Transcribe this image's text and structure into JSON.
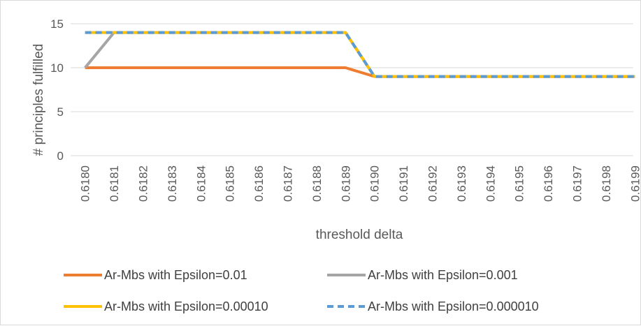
{
  "chart_data": {
    "type": "line",
    "title": "",
    "xlabel": "threshold delta",
    "ylabel": "# principles fulfilled",
    "categories": [
      "0.6180",
      "0.6181",
      "0.6182",
      "0.6183",
      "0.6184",
      "0.6185",
      "0.6186",
      "0.6187",
      "0.6188",
      "0.6189",
      "0.6190",
      "0.6191",
      "0.6192",
      "0.6193",
      "0.6194",
      "0.6195",
      "0.6196",
      "0.6197",
      "0.6198",
      "0.6199"
    ],
    "y_ticks": [
      "0",
      "5",
      "10",
      "15"
    ],
    "ylim": [
      0,
      15
    ],
    "grid": "horizontal",
    "legend_position": "bottom",
    "series": [
      {
        "name": "Ar-Mbs with Epsilon=0.01",
        "color": "#ed7d31",
        "dash": "solid",
        "values": [
          10,
          10,
          10,
          10,
          10,
          10,
          10,
          10,
          10,
          10,
          9,
          9,
          9,
          9,
          9,
          9,
          9,
          9,
          9,
          9
        ]
      },
      {
        "name": "Ar-Mbs with Epsilon=0.001",
        "color": "#a5a5a5",
        "dash": "solid",
        "values": [
          10,
          14,
          14,
          14,
          14,
          14,
          14,
          14,
          14,
          14,
          9,
          9,
          9,
          9,
          9,
          9,
          9,
          9,
          9,
          9
        ]
      },
      {
        "name": "Ar-Mbs with Epsilon=0.00010",
        "color": "#ffc000",
        "dash": "solid",
        "values": [
          14,
          14,
          14,
          14,
          14,
          14,
          14,
          14,
          14,
          14,
          9,
          9,
          9,
          9,
          9,
          9,
          9,
          9,
          9,
          9
        ]
      },
      {
        "name": "Ar-Mbs with Epsilon=0.000010",
        "color": "#5b9bd5",
        "dash": "dashed",
        "values": [
          14,
          14,
          14,
          14,
          14,
          14,
          14,
          14,
          14,
          14,
          9,
          9,
          9,
          9,
          9,
          9,
          9,
          9,
          9,
          9
        ]
      }
    ]
  }
}
